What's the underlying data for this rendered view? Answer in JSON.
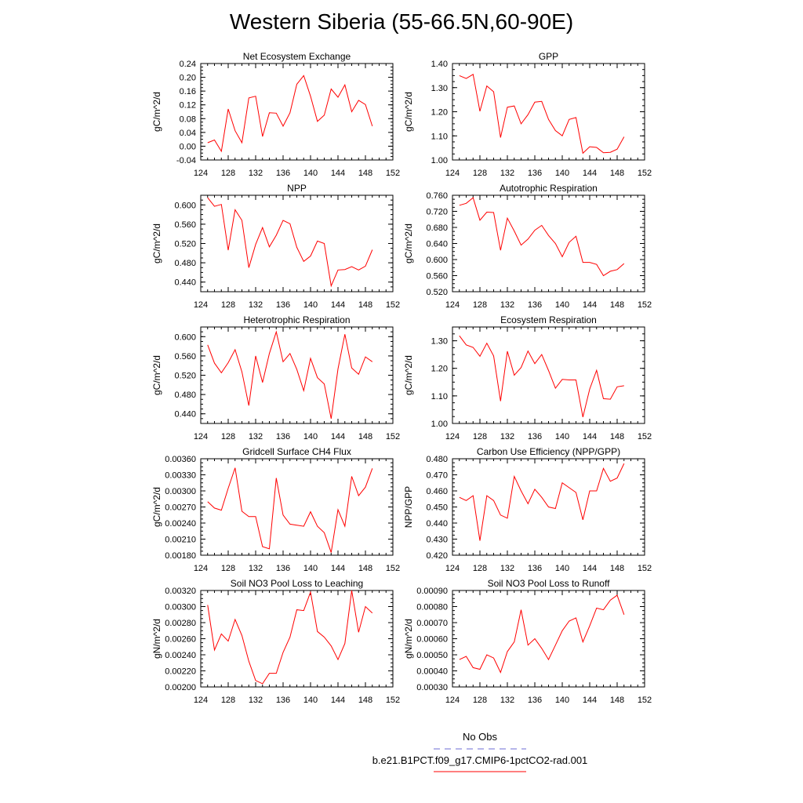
{
  "figure": {
    "title": "Western Siberia (55-66.5N,60-90E)",
    "legend": [
      {
        "label": "No Obs",
        "color": "#6b6bd6",
        "style": "dashed"
      },
      {
        "label": "b.e21.B1PCT.f09_g17.CMIP6-1pctCO2-rad.001",
        "color": "#ff0000",
        "style": "solid"
      }
    ],
    "line_color": "#ff0000"
  },
  "chart_data": [
    {
      "type": "line",
      "title": "Net Ecosystem Exchange",
      "ylabel": "gC/m^2/d",
      "xlim": [
        124,
        152
      ],
      "xticks": [
        "124",
        "128",
        "132",
        "136",
        "140",
        "144",
        "148",
        "152"
      ],
      "ylim": [
        -0.04,
        0.24
      ],
      "yticks": [
        "-0.04",
        "0.00",
        "0.04",
        "0.08",
        "0.12",
        "0.16",
        "0.20",
        "0.24"
      ],
      "x": [
        125,
        126,
        127,
        128,
        129,
        130,
        131,
        132,
        133,
        134,
        135,
        136,
        137,
        138,
        139,
        140,
        141,
        142,
        143,
        144,
        145,
        146,
        147,
        148,
        149
      ],
      "series": [
        {
          "values": [
            0.01,
            0.018,
            -0.015,
            0.108,
            0.045,
            0.01,
            0.14,
            0.145,
            0.028,
            0.097,
            0.096,
            0.058,
            0.097,
            0.18,
            0.205,
            0.145,
            0.072,
            0.09,
            0.166,
            0.142,
            0.178,
            0.1,
            0.133,
            0.121,
            0.058
          ]
        }
      ]
    },
    {
      "type": "line",
      "title": "GPP",
      "ylabel": "gC/m^2/d",
      "xlim": [
        124,
        152
      ],
      "xticks": [
        "124",
        "128",
        "132",
        "136",
        "140",
        "144",
        "148",
        "152"
      ],
      "ylim": [
        1.0,
        1.4
      ],
      "yticks": [
        "1.00",
        "1.10",
        "1.20",
        "1.30",
        "1.40"
      ],
      "x": [
        125,
        126,
        127,
        128,
        129,
        130,
        131,
        132,
        133,
        134,
        135,
        136,
        137,
        138,
        139,
        140,
        141,
        142,
        143,
        144,
        145,
        146,
        147,
        148,
        149
      ],
      "series": [
        {
          "values": [
            1.35,
            1.338,
            1.355,
            1.202,
            1.307,
            1.283,
            1.093,
            1.219,
            1.224,
            1.15,
            1.188,
            1.24,
            1.243,
            1.168,
            1.122,
            1.1,
            1.168,
            1.176,
            1.028,
            1.055,
            1.052,
            1.03,
            1.032,
            1.045,
            1.096
          ]
        }
      ]
    },
    {
      "type": "line",
      "title": "NPP",
      "ylabel": "gC/m^2/d",
      "xlim": [
        124,
        152
      ],
      "xticks": [
        "124",
        "128",
        "132",
        "136",
        "140",
        "144",
        "148",
        "152"
      ],
      "ylim": [
        0.42,
        0.62
      ],
      "yticks": [
        "0.440",
        "0.480",
        "0.520",
        "0.560",
        "0.600"
      ],
      "x": [
        125,
        126,
        127,
        128,
        129,
        130,
        131,
        132,
        133,
        134,
        135,
        136,
        137,
        138,
        139,
        140,
        141,
        142,
        143,
        144,
        145,
        146,
        147,
        148,
        149
      ],
      "series": [
        {
          "values": [
            0.615,
            0.597,
            0.601,
            0.506,
            0.59,
            0.568,
            0.47,
            0.518,
            0.553,
            0.513,
            0.537,
            0.568,
            0.561,
            0.512,
            0.483,
            0.494,
            0.525,
            0.52,
            0.432,
            0.465,
            0.466,
            0.472,
            0.465,
            0.473,
            0.507
          ]
        }
      ]
    },
    {
      "type": "line",
      "title": "Autotrophic Respiration",
      "ylabel": "gC/m^2/d",
      "xlim": [
        124,
        152
      ],
      "xticks": [
        "124",
        "128",
        "132",
        "136",
        "140",
        "144",
        "148",
        "152"
      ],
      "ylim": [
        0.52,
        0.76
      ],
      "yticks": [
        "0.520",
        "0.560",
        "0.600",
        "0.640",
        "0.680",
        "0.720",
        "0.760"
      ],
      "x": [
        125,
        126,
        127,
        128,
        129,
        130,
        131,
        132,
        133,
        134,
        135,
        136,
        137,
        138,
        139,
        140,
        141,
        142,
        143,
        144,
        145,
        146,
        147,
        148,
        149
      ],
      "series": [
        {
          "values": [
            0.735,
            0.74,
            0.754,
            0.698,
            0.718,
            0.717,
            0.623,
            0.703,
            0.671,
            0.636,
            0.651,
            0.673,
            0.685,
            0.66,
            0.64,
            0.607,
            0.643,
            0.658,
            0.593,
            0.593,
            0.588,
            0.56,
            0.571,
            0.575,
            0.59
          ]
        }
      ]
    },
    {
      "type": "line",
      "title": "Heterotrophic Respiration",
      "ylabel": "gC/m^2/d",
      "xlim": [
        124,
        152
      ],
      "xticks": [
        "124",
        "128",
        "132",
        "136",
        "140",
        "144",
        "148",
        "152"
      ],
      "ylim": [
        0.42,
        0.62
      ],
      "yticks": [
        "0.440",
        "0.480",
        "0.520",
        "0.560",
        "0.600"
      ],
      "x": [
        125,
        126,
        127,
        128,
        129,
        130,
        131,
        132,
        133,
        134,
        135,
        136,
        137,
        138,
        139,
        140,
        141,
        142,
        143,
        144,
        145,
        146,
        147,
        148,
        149
      ],
      "series": [
        {
          "values": [
            0.583,
            0.545,
            0.525,
            0.546,
            0.573,
            0.527,
            0.457,
            0.56,
            0.505,
            0.565,
            0.61,
            0.548,
            0.565,
            0.532,
            0.488,
            0.555,
            0.515,
            0.502,
            0.43,
            0.533,
            0.605,
            0.535,
            0.522,
            0.558,
            0.548
          ]
        }
      ]
    },
    {
      "type": "line",
      "title": "Ecosystem Respiration",
      "ylabel": "gC/m^2/d",
      "xlim": [
        124,
        152
      ],
      "xticks": [
        "124",
        "128",
        "132",
        "136",
        "140",
        "144",
        "148",
        "152"
      ],
      "ylim": [
        1.0,
        1.35
      ],
      "yticks": [
        "1.00",
        "1.10",
        "1.20",
        "1.30"
      ],
      "x": [
        125,
        126,
        127,
        128,
        129,
        130,
        131,
        132,
        133,
        134,
        135,
        136,
        137,
        138,
        139,
        140,
        141,
        142,
        143,
        144,
        145,
        146,
        147,
        148,
        149
      ],
      "series": [
        {
          "values": [
            1.318,
            1.285,
            1.276,
            1.244,
            1.291,
            1.245,
            1.081,
            1.262,
            1.175,
            1.203,
            1.263,
            1.217,
            1.25,
            1.192,
            1.128,
            1.16,
            1.158,
            1.158,
            1.023,
            1.125,
            1.193,
            1.09,
            1.088,
            1.133,
            1.137
          ]
        }
      ]
    },
    {
      "type": "line",
      "title": "Gridcell Surface CH4 Flux",
      "ylabel": "gC/m^2/d",
      "xlim": [
        124,
        152
      ],
      "xticks": [
        "124",
        "128",
        "132",
        "136",
        "140",
        "144",
        "148",
        "152"
      ],
      "ylim": [
        0.0018,
        0.0036
      ],
      "yticks": [
        "0.00180",
        "0.00210",
        "0.00240",
        "0.00270",
        "0.00300",
        "0.00330",
        "0.00360"
      ],
      "x": [
        125,
        126,
        127,
        128,
        129,
        130,
        131,
        132,
        133,
        134,
        135,
        136,
        137,
        138,
        139,
        140,
        141,
        142,
        143,
        144,
        145,
        146,
        147,
        148,
        149
      ],
      "series": [
        {
          "values": [
            0.0028,
            0.00268,
            0.00264,
            0.00305,
            0.00343,
            0.00262,
            0.00252,
            0.00252,
            0.00196,
            0.00192,
            0.00324,
            0.00255,
            0.00238,
            0.00236,
            0.00234,
            0.00261,
            0.00234,
            0.00222,
            0.00185,
            0.00265,
            0.00234,
            0.00327,
            0.00291,
            0.00307,
            0.00342
          ]
        }
      ]
    },
    {
      "type": "line",
      "title": "Carbon Use Efficiency (NPP/GPP)",
      "ylabel": "NPP/GPP",
      "xlim": [
        124,
        152
      ],
      "xticks": [
        "124",
        "128",
        "132",
        "136",
        "140",
        "144",
        "148",
        "152"
      ],
      "ylim": [
        0.42,
        0.48
      ],
      "yticks": [
        "0.420",
        "0.430",
        "0.440",
        "0.450",
        "0.460",
        "0.470",
        "0.480"
      ],
      "x": [
        125,
        126,
        127,
        128,
        129,
        130,
        131,
        132,
        133,
        134,
        135,
        136,
        137,
        138,
        139,
        140,
        141,
        142,
        143,
        144,
        145,
        146,
        147,
        148,
        149
      ],
      "series": [
        {
          "values": [
            0.456,
            0.454,
            0.457,
            0.429,
            0.457,
            0.454,
            0.445,
            0.443,
            0.469,
            0.46,
            0.452,
            0.461,
            0.456,
            0.45,
            0.449,
            0.465,
            0.462,
            0.459,
            0.442,
            0.46,
            0.46,
            0.474,
            0.466,
            0.468,
            0.477
          ]
        }
      ]
    },
    {
      "type": "line",
      "title": "Soil NO3 Pool Loss to Leaching",
      "ylabel": "gN/m^2/d",
      "xlim": [
        124,
        152
      ],
      "xticks": [
        "124",
        "128",
        "132",
        "136",
        "140",
        "144",
        "148",
        "152"
      ],
      "ylim": [
        0.002,
        0.0032
      ],
      "yticks": [
        "0.00200",
        "0.00220",
        "0.00240",
        "0.00260",
        "0.00280",
        "0.00300",
        "0.00320"
      ],
      "x": [
        125,
        126,
        127,
        128,
        129,
        130,
        131,
        132,
        133,
        134,
        135,
        136,
        137,
        138,
        139,
        140,
        141,
        142,
        143,
        144,
        145,
        146,
        147,
        148,
        149
      ],
      "series": [
        {
          "values": [
            0.00302,
            0.00246,
            0.00266,
            0.00257,
            0.00284,
            0.00264,
            0.00232,
            0.00208,
            0.00204,
            0.00217,
            0.00217,
            0.00243,
            0.00262,
            0.00296,
            0.00295,
            0.00318,
            0.00269,
            0.00262,
            0.00251,
            0.00234,
            0.00254,
            0.0032,
            0.00268,
            0.003,
            0.00292
          ]
        }
      ]
    },
    {
      "type": "line",
      "title": "Soil NO3 Pool Loss to Runoff",
      "ylabel": "gN/m^2/d",
      "xlim": [
        124,
        152
      ],
      "xticks": [
        "124",
        "128",
        "132",
        "136",
        "140",
        "144",
        "148",
        "152"
      ],
      "ylim": [
        0.0003,
        0.0009
      ],
      "yticks": [
        "0.00030",
        "0.00040",
        "0.00050",
        "0.00060",
        "0.00070",
        "0.00080",
        "0.00090"
      ],
      "x": [
        125,
        126,
        127,
        128,
        129,
        130,
        131,
        132,
        133,
        134,
        135,
        136,
        137,
        138,
        139,
        140,
        141,
        142,
        143,
        144,
        145,
        146,
        147,
        148,
        149
      ],
      "series": [
        {
          "values": [
            0.00047,
            0.00049,
            0.00042,
            0.00041,
            0.0005,
            0.00048,
            0.00039,
            0.00052,
            0.00058,
            0.00078,
            0.00056,
            0.0006,
            0.00054,
            0.00047,
            0.00056,
            0.00065,
            0.00071,
            0.00073,
            0.00058,
            0.00068,
            0.00079,
            0.00078,
            0.00084,
            0.00087,
            0.00075
          ]
        }
      ]
    }
  ]
}
